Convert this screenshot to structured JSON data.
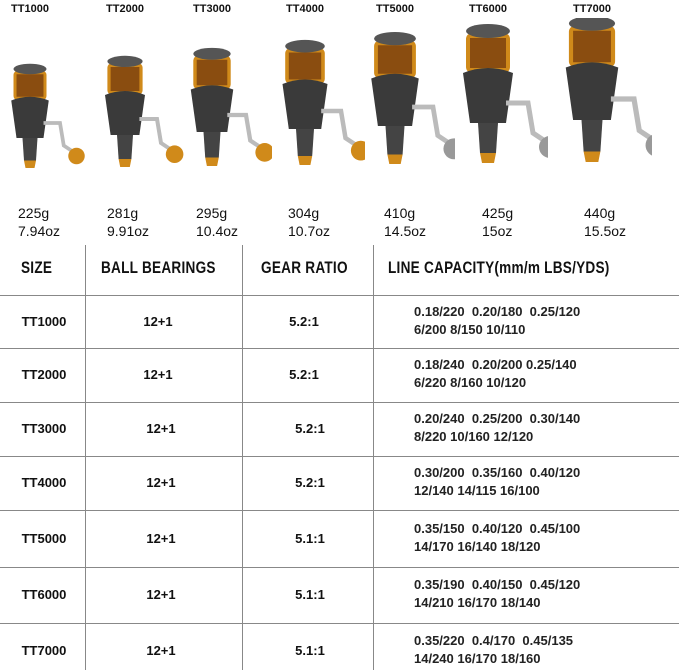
{
  "reels": [
    {
      "model": "TT1000",
      "grams": "225g",
      "ounces": "7.94oz"
    },
    {
      "model": "TT2000",
      "grams": "281g",
      "ounces": "9.91oz"
    },
    {
      "model": "TT3000",
      "grams": "295g",
      "ounces": "10.4oz"
    },
    {
      "model": "TT4000",
      "grams": "304g",
      "ounces": "10.7oz"
    },
    {
      "model": "TT5000",
      "grams": "410g",
      "ounces": "14.5oz"
    },
    {
      "model": "TT6000",
      "grams": "425g",
      "ounces": "15oz"
    },
    {
      "model": "TT7000",
      "grams": "440g",
      "ounces": "15.5oz"
    }
  ],
  "table": {
    "headers": [
      "SIZE",
      "BALL BEARINGS",
      "GEAR RATIO",
      "LINE CAPACITY(mm/m  LBS/YDS)"
    ],
    "rows": [
      {
        "size": "TT1000",
        "bearings": "12+1",
        "ratio": "5.2:1",
        "mm": "0.18/220  0.20/180  0.25/120",
        "lbs": "6/200 8/150 10/110"
      },
      {
        "size": "TT2000",
        "bearings": "12+1",
        "ratio": "5.2:1",
        "mm": "0.18/240  0.20/200 0.25/140",
        "lbs": "6/220 8/160 10/120"
      },
      {
        "size": "TT3000",
        "bearings": "12+1",
        "ratio": "5.2:1",
        "mm": "0.20/240  0.25/200  0.30/140",
        "lbs": "8/220 10/160 12/120"
      },
      {
        "size": "TT4000",
        "bearings": "12+1",
        "ratio": "5.2:1",
        "mm": "0.30/200  0.35/160  0.40/120",
        "lbs": "12/140 14/115 16/100"
      },
      {
        "size": "TT5000",
        "bearings": "12+1",
        "ratio": "5.1:1",
        "mm": "0.35/150  0.40/120  0.45/100",
        "lbs": "14/170 16/140 18/120"
      },
      {
        "size": "TT6000",
        "bearings": "12+1",
        "ratio": "5.1:1",
        "mm": "0.35/190  0.40/150  0.45/120",
        "lbs": "14/210 16/170 18/140"
      },
      {
        "size": "TT7000",
        "bearings": "12+1",
        "ratio": "5.1:1",
        "mm": "0.35/220  0.4/170  0.45/135",
        "lbs": "14/240 16/170 18/160"
      }
    ]
  },
  "colors": {
    "accent": "#d08a1a",
    "body": "#3a3a3a"
  }
}
